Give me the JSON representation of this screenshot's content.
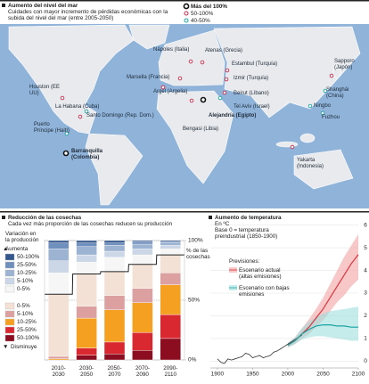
{
  "map": {
    "title": "Aumento del nivel del mar",
    "subtitle": "Cuidades con mayor incremento de pérdidas económicas con la subida del nivel del mar (entre 2005-2050)",
    "groups": [
      {
        "label": "Más del 100%",
        "color": "#111111",
        "cities": [
          "Alejandría (Egipto)",
          "Barranquilla (Colombia)"
        ]
      },
      {
        "label": "50-100%",
        "color": "#c8294b",
        "cities": [
          "Nápoles (Italia)",
          "Atenas (Grecia)",
          "Marsella (Francia)",
          "Estambul (Turquía)",
          "Izmir (Turquía)",
          "Argel (Argelia)",
          "Beirut (Líbano)",
          "Bengasi (Libia)",
          "Houston (EE UU)",
          "Santo Domingo (Rep. Dom.)",
          "Sapporo (Japón)",
          "Yakarta (Indonesia)"
        ]
      },
      {
        "label": "40-50%",
        "color": "#1aa3a3",
        "cities": [
          "Tel Aviv (Israel)",
          "La Habana (Cuba)",
          "Puerto Príncipe (Haití)",
          "Shanghái (China)",
          "Ningbo",
          "Fuzhou"
        ]
      }
    ]
  },
  "chart_data": [
    {
      "type": "stacked-bar",
      "title": "Reducción de las cosechas",
      "subtitle": "Cada vez más proporción de las cosechas reducen su producción",
      "legend_title": "Variación en la producción",
      "increase_label": "Aumenta",
      "decrease_label": "Disminuye",
      "y_axis_label": "% de las cosechas",
      "categories": [
        "2010-2030",
        "2030-2050",
        "2050-2070",
        "2070-2090",
        "2090-2110"
      ],
      "ylim": [
        0,
        100
      ],
      "yticks": [
        {
          "value": 0,
          "label": "0%"
        },
        {
          "value": 50,
          "label": "50%"
        },
        {
          "value": 100,
          "label": "100%"
        }
      ],
      "series": [
        {
          "name": "50-100%",
          "color": "#8b0d1f",
          "values": [
            0,
            4,
            5,
            8,
            18
          ]
        },
        {
          "name": "25-50%",
          "color": "#d9282f",
          "values": [
            0,
            6,
            10,
            15,
            20
          ]
        },
        {
          "name": "10-25%",
          "color": "#f5a020",
          "values": [
            1,
            25,
            27,
            25,
            25
          ]
        },
        {
          "name": "5-10%",
          "color": "#dca0a0",
          "values": [
            2,
            10,
            12,
            12,
            10
          ]
        },
        {
          "name": "0-5%",
          "color": "#f3e1d6",
          "values": [
            52,
            27,
            20,
            20,
            15
          ]
        },
        {
          "name": "0-5%",
          "color": "#f6f6f6",
          "values": [
            18,
            10,
            12,
            8,
            5
          ]
        },
        {
          "name": "5-10%",
          "color": "#cbd7e6",
          "values": [
            10,
            6,
            5,
            5,
            3
          ]
        },
        {
          "name": "10-25%",
          "color": "#9cb3d1",
          "values": [
            10,
            7,
            5,
            4,
            2
          ]
        },
        {
          "name": "25-50%",
          "color": "#6f8fbd",
          "values": [
            5,
            3,
            2,
            2,
            1
          ]
        },
        {
          "name": "50-100%",
          "color": "#34588e",
          "values": [
            2,
            2,
            2,
            1,
            1
          ]
        }
      ]
    },
    {
      "type": "line",
      "title": "Aumento de temperatura",
      "subtitle": "En ºC",
      "note": "Base 0 = temperatura preindustrial (1850-1900)",
      "legend_title": "Previsiones:",
      "xlim": [
        1890,
        2100
      ],
      "xticks": [
        1900,
        1950,
        2000,
        2050,
        2100
      ],
      "ylim": [
        -0.3,
        6.3
      ],
      "yticks": [
        0,
        1,
        2,
        3,
        4,
        5,
        6
      ],
      "series": [
        {
          "color": "#333333",
          "x": [
            1900,
            1905,
            1910,
            1915,
            1920,
            1925,
            1930,
            1935,
            1940,
            1945,
            1950,
            1955,
            1960,
            1965,
            1970,
            1975,
            1980,
            1985,
            1990,
            1995,
            2000,
            2005,
            2010,
            2015,
            2020
          ],
          "values": [
            0.1,
            -0.05,
            -0.1,
            0.1,
            0.05,
            0.1,
            0.15,
            0.2,
            0.35,
            0.3,
            0.15,
            0.2,
            0.25,
            0.15,
            0.2,
            0.25,
            0.4,
            0.45,
            0.55,
            0.65,
            0.75,
            0.85,
            0.95,
            1.05,
            1.15
          ]
        },
        {
          "name": "Escenario actual (altas emisiones)",
          "color": "#d9363e",
          "band_color": "#f4a3a3",
          "x": [
            2000,
            2010,
            2020,
            2030,
            2040,
            2050,
            2060,
            2070,
            2080,
            2090,
            2100
          ],
          "values": [
            0.7,
            0.9,
            1.2,
            1.5,
            1.9,
            2.3,
            2.8,
            3.3,
            3.8,
            4.3,
            4.7
          ],
          "lower": [
            0.6,
            0.75,
            1.0,
            1.2,
            1.5,
            1.8,
            2.2,
            2.6,
            2.9,
            3.3,
            3.6
          ],
          "upper": [
            0.8,
            1.05,
            1.45,
            1.85,
            2.3,
            2.8,
            3.4,
            4.0,
            4.6,
            5.1,
            5.6
          ]
        },
        {
          "name": "Escenario con bajas emisiones",
          "color": "#1aa3a3",
          "band_color": "#9fdedd",
          "x": [
            2000,
            2010,
            2020,
            2030,
            2040,
            2050,
            2060,
            2070,
            2080,
            2090,
            2100
          ],
          "values": [
            0.7,
            0.9,
            1.2,
            1.4,
            1.55,
            1.6,
            1.6,
            1.55,
            1.55,
            1.5,
            1.5
          ],
          "lower": [
            0.6,
            0.75,
            0.95,
            1.05,
            1.1,
            1.1,
            1.05,
            1.0,
            0.95,
            0.9,
            0.9
          ],
          "upper": [
            0.8,
            1.05,
            1.45,
            1.75,
            1.95,
            2.1,
            2.2,
            2.25,
            2.3,
            2.35,
            2.4
          ]
        }
      ]
    }
  ]
}
